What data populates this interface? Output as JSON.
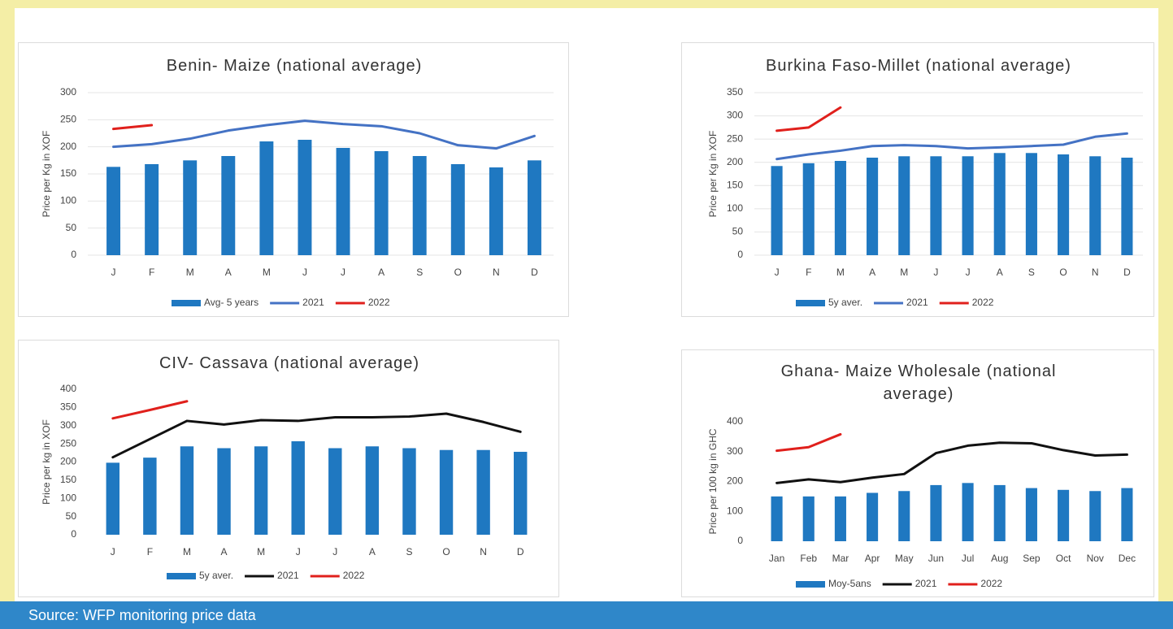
{
  "chart_data": [
    {
      "type": "bar-line",
      "title": "Benin- Maize (national average)",
      "y_label": "Price per Kg in XOF",
      "categories": [
        "J",
        "F",
        "M",
        "A",
        "M",
        "J",
        "J",
        "A",
        "S",
        "O",
        "N",
        "D"
      ],
      "ylim": [
        0,
        300
      ],
      "yticks": [
        0,
        50,
        100,
        150,
        200,
        250,
        300
      ],
      "grid": true,
      "series": [
        {
          "name": "Avg- 5 years",
          "kind": "bar",
          "color": "#1f78c1",
          "values": [
            163,
            168,
            175,
            183,
            210,
            213,
            198,
            192,
            183,
            168,
            162,
            175
          ]
        },
        {
          "name": "2021",
          "kind": "line",
          "color": "#4472c4",
          "values": [
            200,
            205,
            215,
            230,
            240,
            248,
            242,
            238,
            225,
            203,
            197,
            220
          ]
        },
        {
          "name": "2022",
          "kind": "line",
          "color": "#e0201c",
          "values": [
            233,
            240,
            null,
            null,
            null,
            null,
            null,
            null,
            null,
            null,
            null,
            null
          ]
        }
      ]
    },
    {
      "type": "bar-line",
      "title": "Burkina Faso-Millet (national average)",
      "y_label": "Price per Kg in XOF",
      "categories": [
        "J",
        "F",
        "M",
        "A",
        "M",
        "J",
        "J",
        "A",
        "S",
        "O",
        "N",
        "D"
      ],
      "ylim": [
        0,
        350
      ],
      "yticks": [
        0,
        50,
        100,
        150,
        200,
        250,
        300,
        350
      ],
      "grid": true,
      "series": [
        {
          "name": "5y aver.",
          "kind": "bar",
          "color": "#1f78c1",
          "values": [
            192,
            198,
            203,
            210,
            213,
            213,
            213,
            220,
            220,
            217,
            213,
            210
          ]
        },
        {
          "name": "2021",
          "kind": "line",
          "color": "#4472c4",
          "values": [
            207,
            217,
            225,
            235,
            237,
            235,
            230,
            232,
            235,
            238,
            255,
            262
          ]
        },
        {
          "name": "2022",
          "kind": "line",
          "color": "#e0201c",
          "values": [
            268,
            275,
            318,
            null,
            null,
            null,
            null,
            null,
            null,
            null,
            null,
            null
          ]
        }
      ]
    },
    {
      "type": "bar-line",
      "title": "CIV- Cassava (national average)",
      "y_label": "Price per kg in XOF",
      "categories": [
        "J",
        "F",
        "M",
        "A",
        "M",
        "J",
        "J",
        "A",
        "S",
        "O",
        "N",
        "D"
      ],
      "ylim": [
        0,
        400
      ],
      "yticks": [
        0,
        50,
        100,
        150,
        200,
        250,
        300,
        350,
        400
      ],
      "grid": false,
      "series": [
        {
          "name": "5y aver.",
          "kind": "bar",
          "color": "#1f78c1",
          "values": [
            198,
            212,
            243,
            238,
            243,
            257,
            238,
            243,
            238,
            233,
            233,
            228
          ]
        },
        {
          "name": "2021",
          "kind": "line",
          "color": "#111111",
          "values": [
            213,
            263,
            313,
            303,
            315,
            313,
            323,
            323,
            325,
            333,
            310,
            283
          ]
        },
        {
          "name": "2022",
          "kind": "line",
          "color": "#e0201c",
          "values": [
            320,
            343,
            367,
            null,
            null,
            null,
            null,
            null,
            null,
            null,
            null,
            null
          ]
        }
      ]
    },
    {
      "type": "bar-line",
      "title": "Ghana- Maize Wholesale (national average)",
      "y_label": "Price per 100 kg in GHC",
      "categories": [
        "Jan",
        "Feb",
        "Mar",
        "Apr",
        "May",
        "Jun",
        "Jul",
        "Aug",
        "Sep",
        "Oct",
        "Nov",
        "Dec"
      ],
      "ylim": [
        0,
        400
      ],
      "yticks": [
        0,
        100,
        200,
        300,
        400
      ],
      "grid": false,
      "series": [
        {
          "name": "Moy-5ans",
          "kind": "bar",
          "color": "#1f78c1",
          "values": [
            150,
            150,
            150,
            162,
            168,
            188,
            195,
            188,
            178,
            172,
            168,
            178
          ]
        },
        {
          "name": "2021",
          "kind": "line",
          "color": "#111111",
          "values": [
            195,
            207,
            198,
            213,
            225,
            295,
            320,
            330,
            328,
            305,
            287,
            290
          ]
        },
        {
          "name": "2022",
          "kind": "line",
          "color": "#e0201c",
          "values": [
            303,
            315,
            358,
            null,
            null,
            null,
            null,
            null,
            null,
            null,
            null,
            null
          ]
        }
      ]
    }
  ],
  "source": "Source: WFP monitoring price data"
}
